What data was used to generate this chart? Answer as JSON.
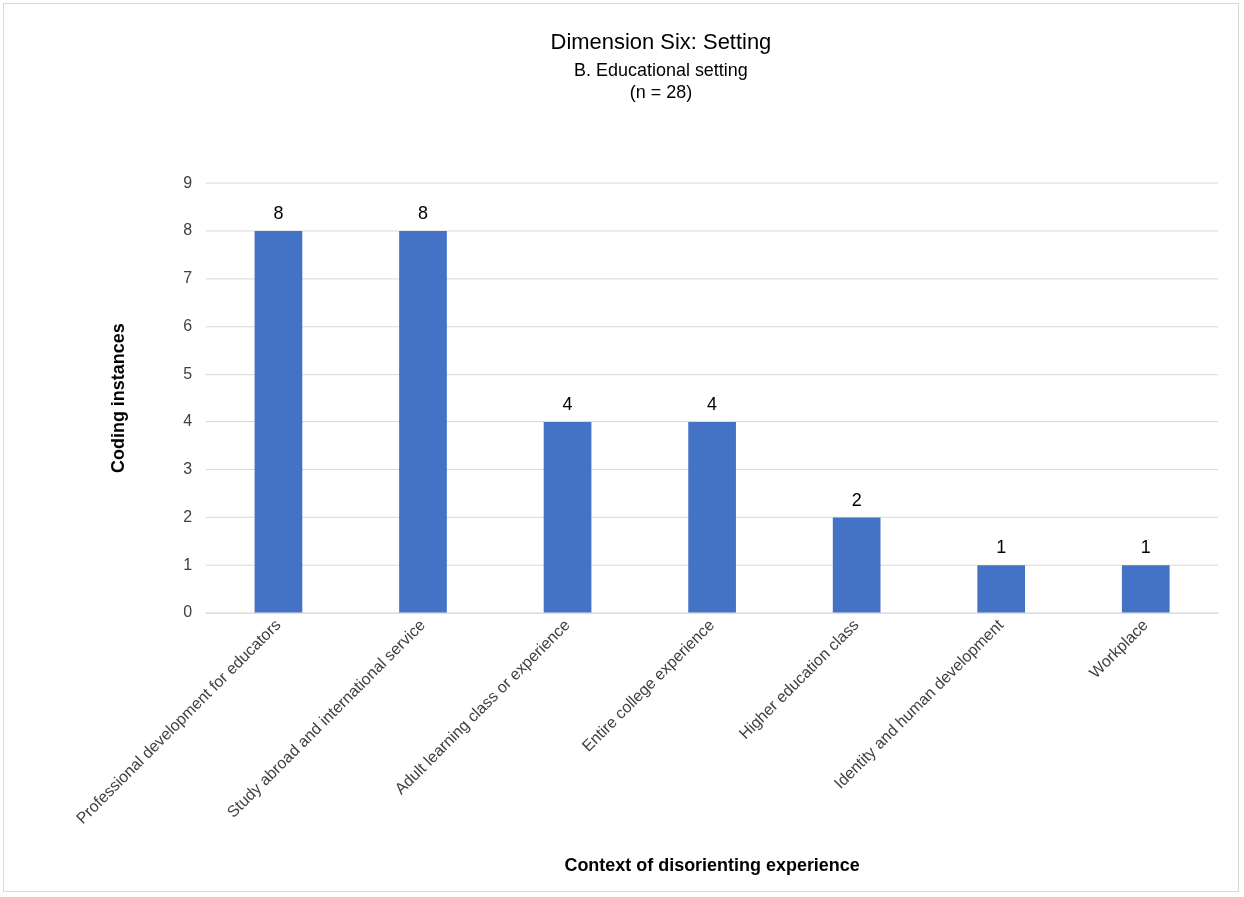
{
  "chart_data": {
    "type": "bar",
    "title": "Dimension Six: Setting",
    "subtitle": "B. Educational setting\n(n = 28)",
    "categories": [
      "Professional development for educators",
      "Study abroad and international service",
      "Adult learning class or experience",
      "Entire college experience",
      "Higher education class",
      "Identity and human development",
      "Workplace"
    ],
    "values": [
      8,
      8,
      4,
      4,
      2,
      1,
      1
    ],
    "color": "#4472c4",
    "ylim": [
      0,
      9
    ],
    "yticks": [
      0,
      1,
      2,
      3,
      4,
      5,
      6,
      7,
      8,
      9
    ],
    "grid": "y",
    "data_labels": true,
    "xlabel": "Context of disorienting experience",
    "ylabel": "Coding instances"
  }
}
